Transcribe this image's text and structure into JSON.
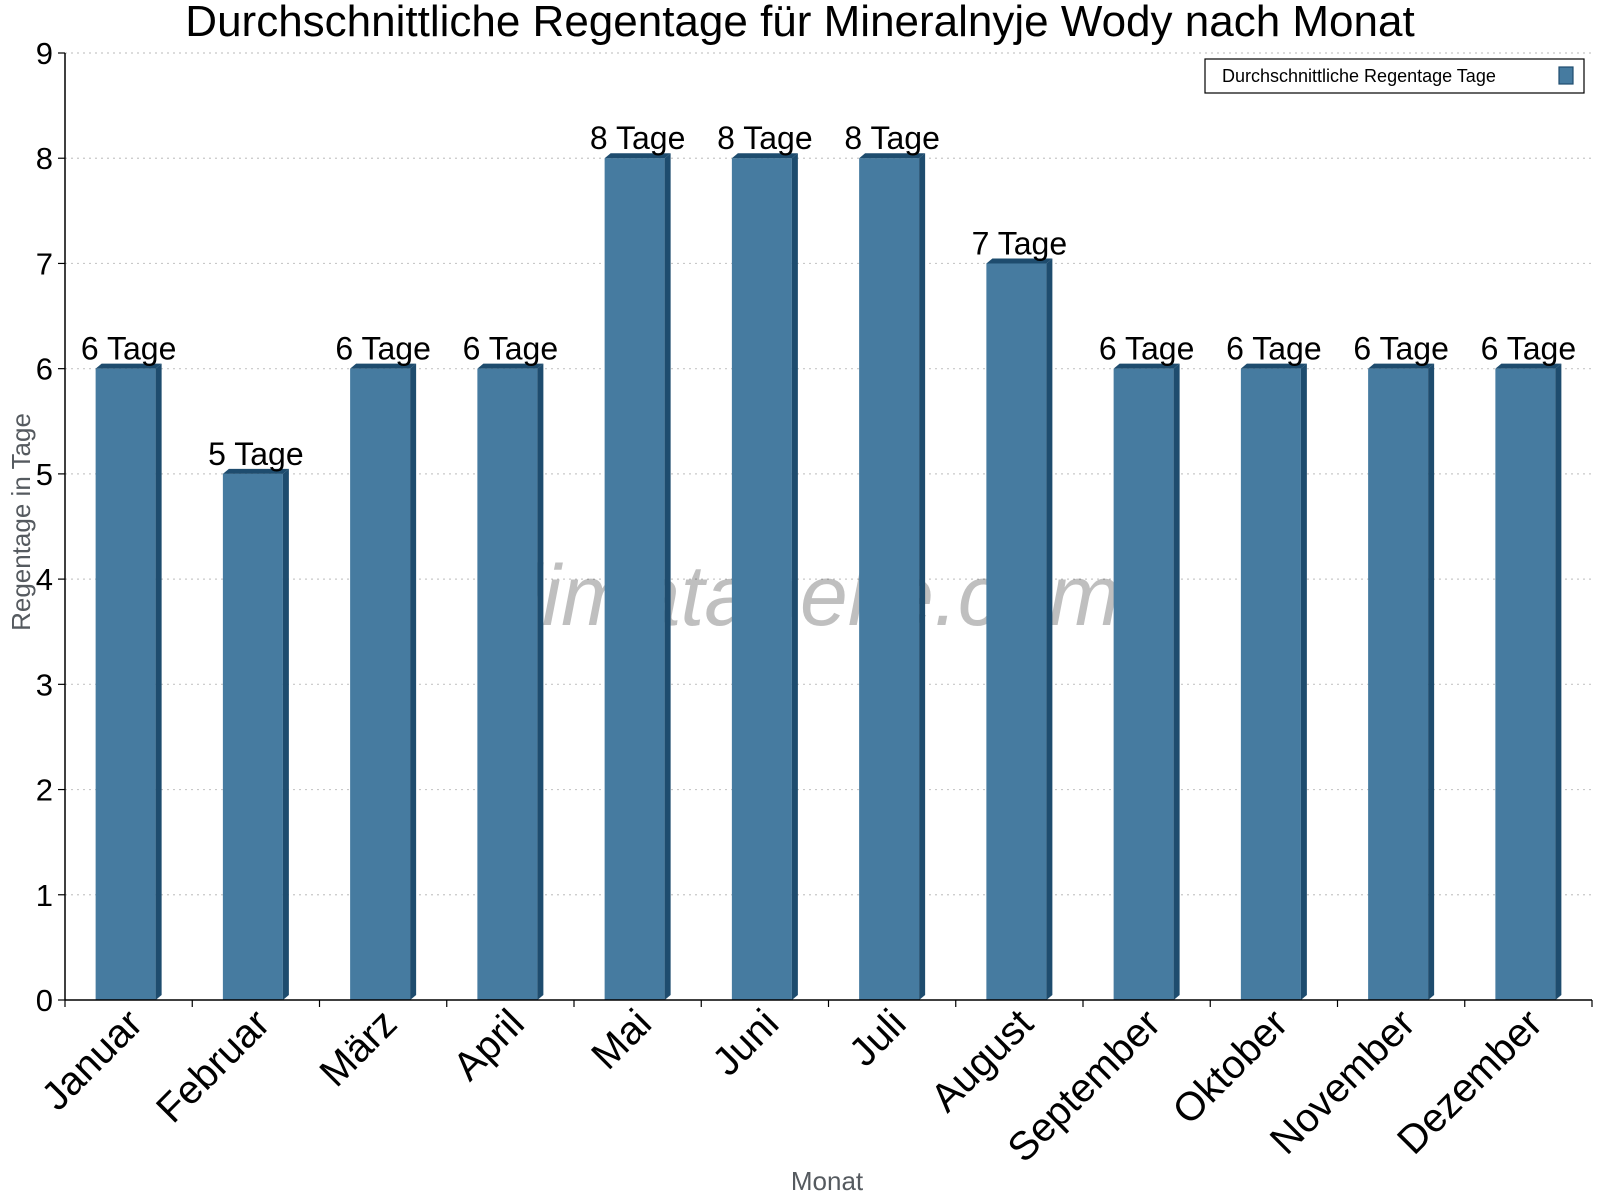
{
  "chart_data": {
    "type": "bar",
    "title": "Durchschnittliche Regentage für Mineralnyje Wody nach Monat",
    "xlabel": "Monat",
    "ylabel": "Regentage in Tage",
    "categories": [
      "Januar",
      "Februar",
      "März",
      "April",
      "Mai",
      "Juni",
      "Juli",
      "August",
      "September",
      "Oktober",
      "November",
      "Dezember"
    ],
    "series": [
      {
        "name": "Durchschnittliche Regentage Tage",
        "values": [
          6,
          5,
          6,
          6,
          8,
          8,
          8,
          7,
          6,
          6,
          6,
          6
        ],
        "labels": [
          "6 Tage",
          "5 Tage",
          "6 Tage",
          "6 Tage",
          "8 Tage",
          "8 Tage",
          "8 Tage",
          "7 Tage",
          "6 Tage",
          "6 Tage",
          "6 Tage",
          "6 Tage"
        ],
        "color": "#467ba0",
        "side_color": "#1e4c6e"
      }
    ],
    "ylim": [
      0,
      9
    ],
    "yticks": [
      "0",
      "1",
      "2",
      "3",
      "4",
      "5",
      "6",
      "7",
      "8",
      "9"
    ],
    "grid": true,
    "legend_position": "top-right",
    "watermark": "klimatabelle.com"
  }
}
